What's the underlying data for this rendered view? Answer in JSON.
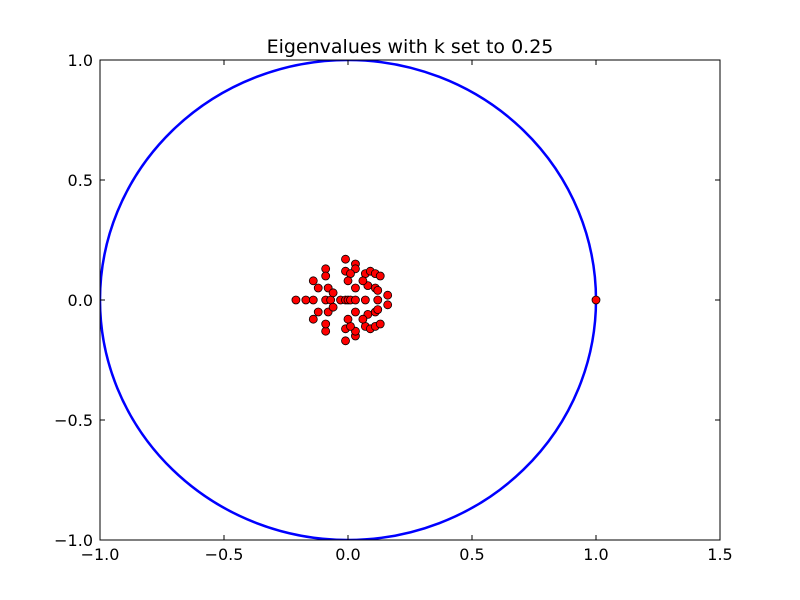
{
  "chart_data": {
    "type": "scatter",
    "title": "Eigenvalues with k set to 0.25",
    "xlabel": "",
    "ylabel": "",
    "xlim": [
      -1.0,
      1.5
    ],
    "ylim": [
      -1.0,
      1.0
    ],
    "grid": false,
    "x_ticks": [
      -1.0,
      -0.5,
      0.0,
      0.5,
      1.0,
      1.5
    ],
    "x_tick_labels": [
      "−1.0",
      "−0.5",
      "0.0",
      "0.5",
      "1.0",
      "1.5"
    ],
    "y_ticks": [
      -1.0,
      -0.5,
      0.0,
      0.5,
      1.0
    ],
    "y_tick_labels": [
      "−1.0",
      "−0.5",
      "0.0",
      "0.5",
      "1.0"
    ],
    "unit_circle": {
      "center": [
        0,
        0
      ],
      "radius": 1.0,
      "color": "#0000ff"
    },
    "series": [
      {
        "name": "eigenvalues",
        "color": "#ff0000",
        "edge_color": "#000000",
        "points": [
          [
            1.0,
            0.0
          ],
          [
            -0.21,
            0.0
          ],
          [
            -0.17,
            0.0
          ],
          [
            -0.14,
            0.0
          ],
          [
            -0.09,
            0.0
          ],
          [
            -0.07,
            0.0
          ],
          [
            -0.03,
            0.0
          ],
          [
            -0.01,
            0.0
          ],
          [
            0.0,
            0.0
          ],
          [
            0.01,
            0.0
          ],
          [
            0.03,
            0.0
          ],
          [
            0.07,
            0.0
          ],
          [
            0.12,
            0.0
          ],
          [
            0.16,
            0.02
          ],
          [
            0.16,
            -0.02
          ],
          [
            -0.01,
            0.17
          ],
          [
            -0.01,
            -0.17
          ],
          [
            0.03,
            0.15
          ],
          [
            0.03,
            -0.15
          ],
          [
            0.03,
            0.13
          ],
          [
            0.03,
            -0.13
          ],
          [
            -0.01,
            0.12
          ],
          [
            -0.01,
            -0.12
          ],
          [
            0.01,
            0.11
          ],
          [
            0.01,
            -0.11
          ],
          [
            -0.09,
            0.13
          ],
          [
            -0.09,
            -0.13
          ],
          [
            -0.09,
            0.1
          ],
          [
            -0.09,
            -0.1
          ],
          [
            -0.14,
            0.08
          ],
          [
            -0.14,
            -0.08
          ],
          [
            -0.12,
            0.05
          ],
          [
            -0.12,
            -0.05
          ],
          [
            -0.08,
            0.05
          ],
          [
            -0.08,
            -0.05
          ],
          [
            -0.06,
            0.03
          ],
          [
            -0.06,
            -0.03
          ],
          [
            0.0,
            0.08
          ],
          [
            0.0,
            -0.08
          ],
          [
            0.03,
            0.05
          ],
          [
            0.03,
            -0.05
          ],
          [
            0.07,
            0.11
          ],
          [
            0.07,
            -0.11
          ],
          [
            0.09,
            0.12
          ],
          [
            0.09,
            -0.12
          ],
          [
            0.11,
            0.11
          ],
          [
            0.11,
            -0.11
          ],
          [
            0.13,
            0.1
          ],
          [
            0.13,
            -0.1
          ],
          [
            0.08,
            0.06
          ],
          [
            0.08,
            -0.06
          ],
          [
            0.11,
            0.05
          ],
          [
            0.11,
            -0.05
          ],
          [
            0.12,
            0.04
          ],
          [
            0.12,
            -0.04
          ],
          [
            0.06,
            0.08
          ],
          [
            0.06,
            -0.08
          ]
        ]
      }
    ]
  }
}
